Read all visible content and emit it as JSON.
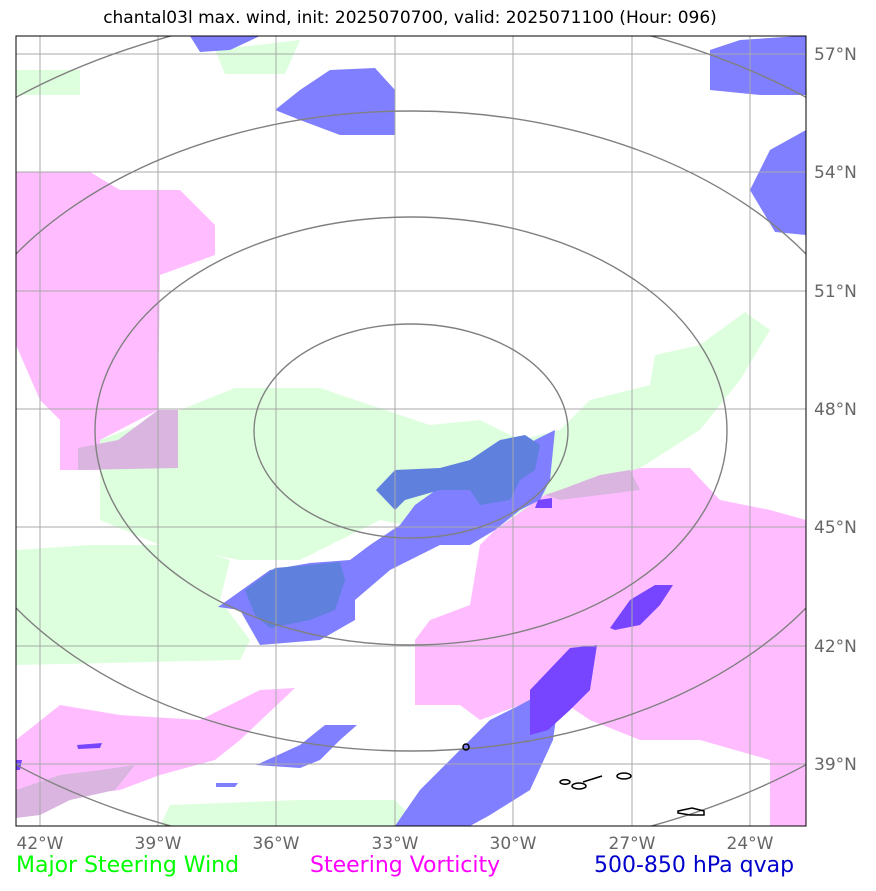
{
  "title": "chantal03l max. wind, init: 2025070700, valid: 2025071100 (Hour: 096)",
  "lon_labels": [
    "42°W",
    "39°W",
    "36°W",
    "33°W",
    "30°W",
    "27°W",
    "24°W"
  ],
  "lat_labels": [
    "57°N",
    "54°N",
    "51°N",
    "48°N",
    "45°N",
    "42°N",
    "39°N"
  ],
  "legend": {
    "wind": {
      "label": "Major Steering Wind",
      "color": "#00ff00"
    },
    "vorticity": {
      "label": "Steering Vorticity",
      "color": "#ff00ff"
    },
    "qvap": {
      "label": "500-850 hPa qvap",
      "color": "#0000cc"
    }
  },
  "fills": {
    "wind": "#ddffdd",
    "vorticity": "#ffbdff",
    "qvap": "#7f7fff",
    "qvap_dark": "#7744ff",
    "overlap_wind_qvap": "#5f80dd",
    "overlap_vort_wind": "#d9b5e0",
    "overlap_vort_qvap": "#b49bd8"
  }
}
